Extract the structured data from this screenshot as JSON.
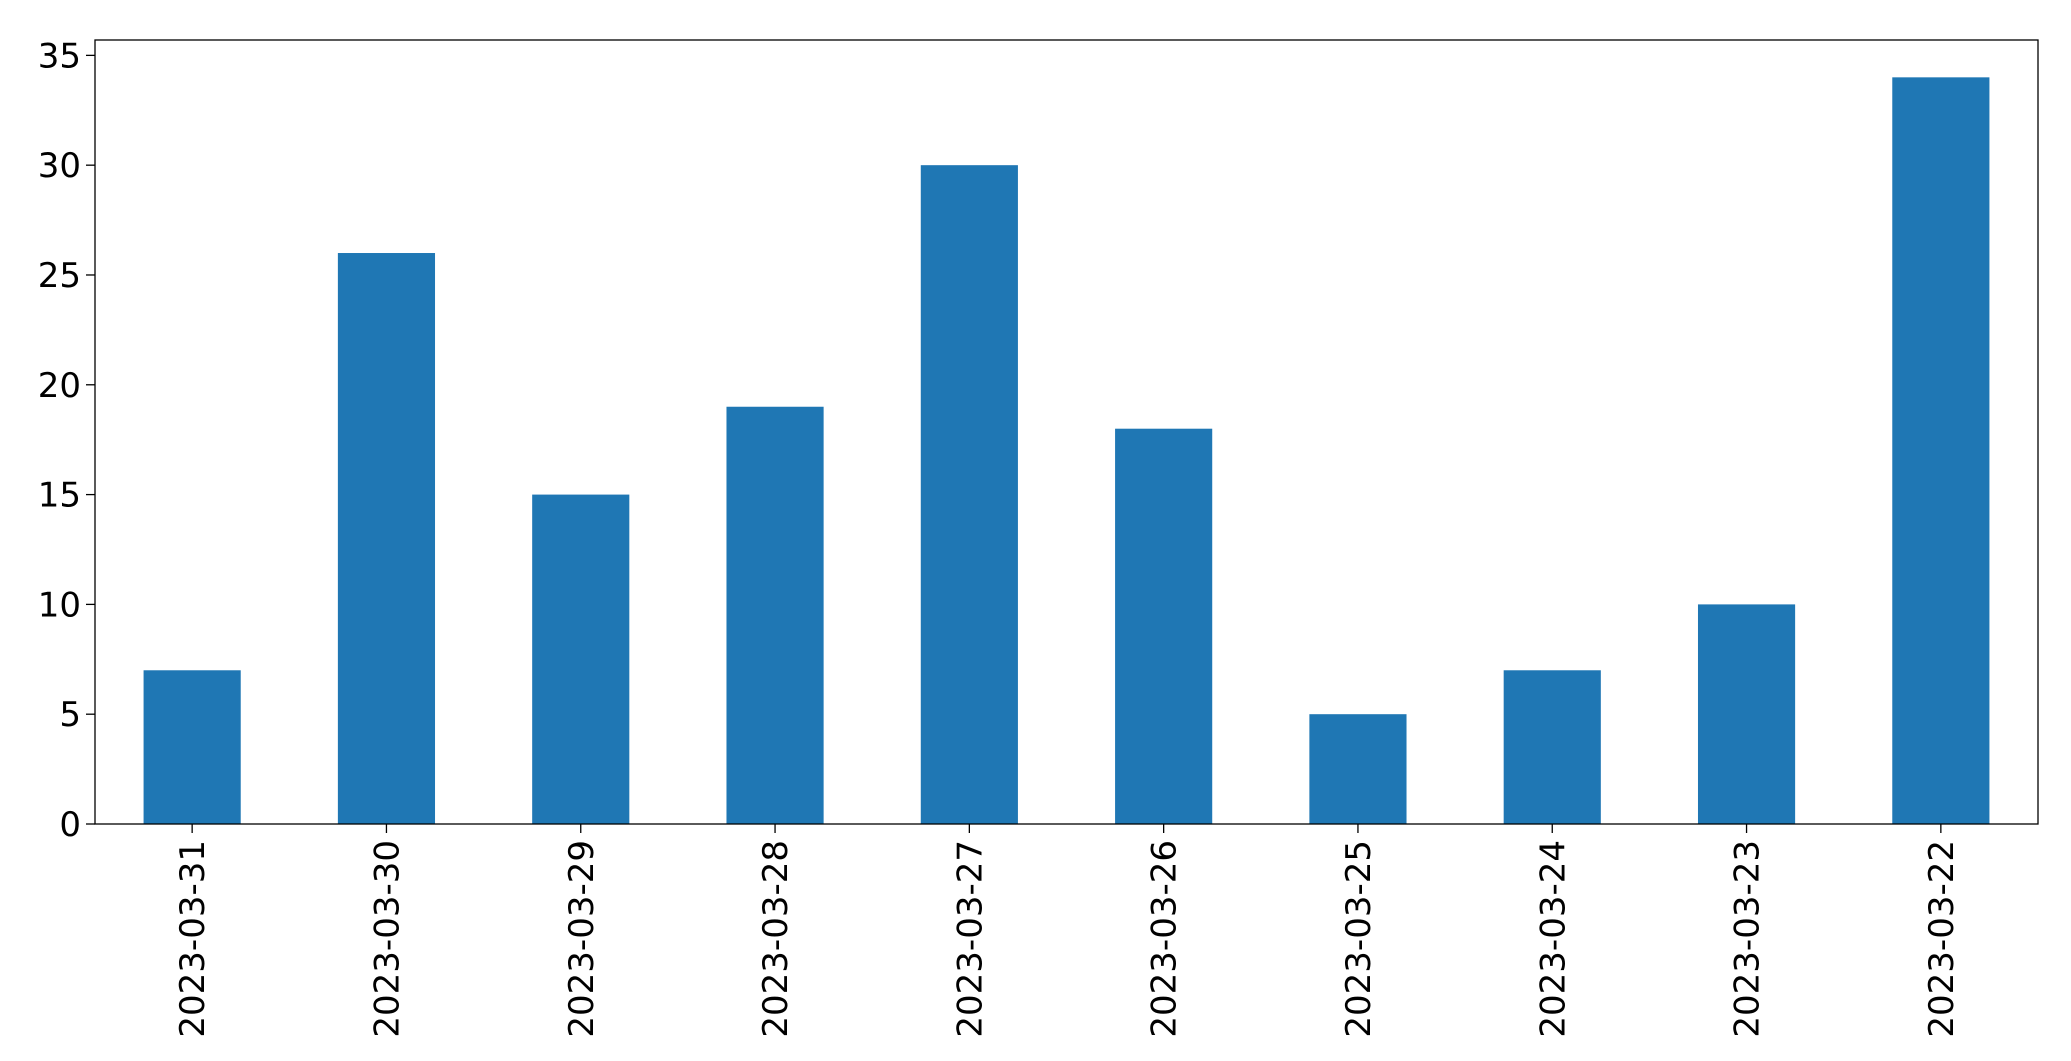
{
  "chart_data": {
    "type": "bar",
    "categories": [
      "2023-03-31",
      "2023-03-30",
      "2023-03-29",
      "2023-03-28",
      "2023-03-27",
      "2023-03-26",
      "2023-03-25",
      "2023-03-24",
      "2023-03-23",
      "2023-03-22"
    ],
    "values": [
      7,
      26,
      15,
      19,
      30,
      18,
      5,
      7,
      10,
      34
    ],
    "color": "#1f77b4",
    "ylim": [
      0,
      35.7
    ],
    "yticks": [
      0,
      5,
      10,
      15,
      20,
      25,
      30,
      35
    ],
    "grid": false
  }
}
